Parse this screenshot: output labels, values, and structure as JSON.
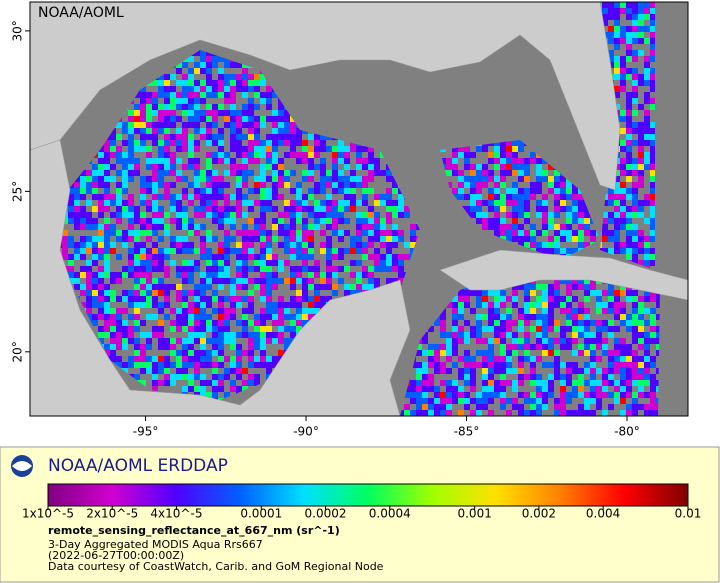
{
  "map": {
    "label": "NOAA/AOML",
    "xlim": [
      -98.6,
      -78.1
    ],
    "ylim": [
      18,
      30.9
    ],
    "xticks": [
      {
        "value": -95,
        "label": "-95°"
      },
      {
        "value": -90,
        "label": "-90°"
      },
      {
        "value": -85,
        "label": "-85°"
      },
      {
        "value": -80,
        "label": "-80°"
      }
    ],
    "yticks": [
      {
        "value": 20,
        "label": "20°"
      },
      {
        "value": 25,
        "label": "25°"
      },
      {
        "value": 30,
        "label": "30°"
      }
    ]
  },
  "legend": {
    "title": "NOAA/AOML ERDDAP",
    "colorbar": {
      "scale": "log",
      "lim": [
        1e-05,
        0.01
      ],
      "colors": [
        "#7f007f",
        "#d000d0",
        "#5000ff",
        "#0060ff",
        "#00e0ff",
        "#00ff60",
        "#a0ff00",
        "#ffe000",
        "#ff8000",
        "#ff0000",
        "#800000"
      ],
      "ticks": [
        {
          "value": 1e-05,
          "label": "1x10^-5"
        },
        {
          "value": 2e-05,
          "label": "2x10^-5"
        },
        {
          "value": 4e-05,
          "label": "4x10^-5"
        },
        0.0001,
        0.0002,
        0.0004,
        0.001,
        0.002,
        0.004,
        0.01
      ]
    },
    "variable": "remote_sensing_reflectance_at_667_nm (sr^-1)",
    "lines": [
      "3-Day Aggregated MODIS Aqua Rrs667",
      "(2022-06-27T00:00:00Z)",
      "Data courtesy of CoastWatch, Carib. and GoM Regional Node"
    ]
  }
}
